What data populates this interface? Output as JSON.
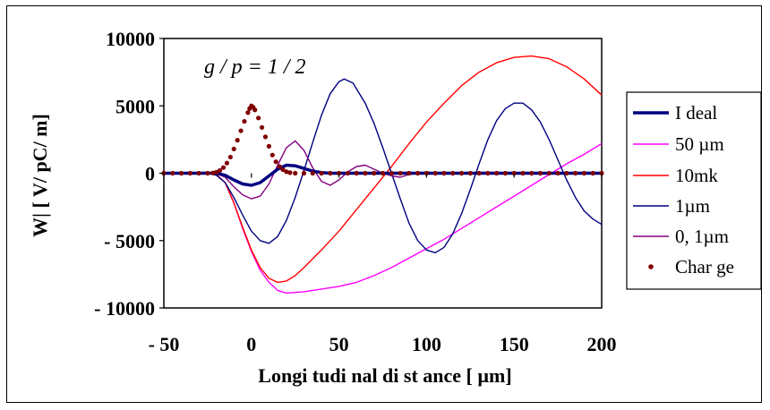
{
  "chart_data": {
    "type": "line",
    "title": "",
    "annotation": "g / p = 1 / 2",
    "xlabel": "Longi tudi nal  di st ance  [ µm]",
    "ylabel": "W|  [ V/ pC/ m]",
    "xlim": [
      -50,
      200
    ],
    "ylim": [
      -10000,
      10000
    ],
    "x_ticks": [
      -50,
      0,
      50,
      100,
      150,
      200
    ],
    "x_tick_labels": [
      "- 50",
      "0",
      "50",
      "100",
      "150",
      "200"
    ],
    "y_ticks": [
      10000,
      5000,
      0,
      -5000,
      -10000
    ],
    "y_tick_labels": [
      "10000",
      "5000",
      "0",
      "- 5000",
      "- 10000"
    ],
    "grid": false,
    "legend_position": "right",
    "series": [
      {
        "name": "I deal",
        "color": "#000080",
        "style": "thick",
        "points": [
          [
            -50,
            0
          ],
          [
            -20,
            0
          ],
          [
            -15,
            -150
          ],
          [
            -10,
            -500
          ],
          [
            -5,
            -800
          ],
          [
            0,
            -900
          ],
          [
            5,
            -700
          ],
          [
            10,
            -200
          ],
          [
            15,
            300
          ],
          [
            20,
            600
          ],
          [
            25,
            550
          ],
          [
            30,
            350
          ],
          [
            35,
            150
          ],
          [
            40,
            50
          ],
          [
            45,
            0
          ],
          [
            200,
            0
          ]
        ]
      },
      {
        "name": "50 µm",
        "color": "#ff00ff",
        "style": "line",
        "points": [
          [
            -50,
            0
          ],
          [
            -25,
            0
          ],
          [
            -20,
            -100
          ],
          [
            -15,
            -700
          ],
          [
            -10,
            -2200
          ],
          [
            -5,
            -4100
          ],
          [
            0,
            -5800
          ],
          [
            5,
            -7200
          ],
          [
            10,
            -8100
          ],
          [
            15,
            -8700
          ],
          [
            20,
            -8900
          ],
          [
            30,
            -8800
          ],
          [
            40,
            -8600
          ],
          [
            50,
            -8400
          ],
          [
            60,
            -8100
          ],
          [
            70,
            -7600
          ],
          [
            80,
            -7000
          ],
          [
            90,
            -6300
          ],
          [
            100,
            -5600
          ],
          [
            110,
            -4900
          ],
          [
            120,
            -4100
          ],
          [
            130,
            -3300
          ],
          [
            140,
            -2500
          ],
          [
            150,
            -1700
          ],
          [
            160,
            -900
          ],
          [
            170,
            -100
          ],
          [
            180,
            700
          ],
          [
            190,
            1400
          ],
          [
            200,
            2200
          ]
        ]
      },
      {
        "name": "10mk",
        "color": "#ff0000",
        "style": "line",
        "points": [
          [
            -50,
            0
          ],
          [
            -25,
            0
          ],
          [
            -20,
            -100
          ],
          [
            -15,
            -700
          ],
          [
            -10,
            -2200
          ],
          [
            -5,
            -4000
          ],
          [
            0,
            -5700
          ],
          [
            5,
            -7000
          ],
          [
            10,
            -7800
          ],
          [
            15,
            -8100
          ],
          [
            20,
            -8000
          ],
          [
            25,
            -7600
          ],
          [
            30,
            -7000
          ],
          [
            40,
            -5700
          ],
          [
            50,
            -4300
          ],
          [
            60,
            -2700
          ],
          [
            70,
            -1100
          ],
          [
            80,
            500
          ],
          [
            90,
            2200
          ],
          [
            100,
            3800
          ],
          [
            110,
            5200
          ],
          [
            120,
            6500
          ],
          [
            130,
            7500
          ],
          [
            140,
            8200
          ],
          [
            150,
            8600
          ],
          [
            160,
            8700
          ],
          [
            170,
            8500
          ],
          [
            180,
            7900
          ],
          [
            190,
            7000
          ],
          [
            200,
            5800
          ]
        ]
      },
      {
        "name": "1µm",
        "color": "#000080",
        "style": "line",
        "points": [
          [
            -50,
            0
          ],
          [
            -25,
            0
          ],
          [
            -20,
            -150
          ],
          [
            -15,
            -700
          ],
          [
            -10,
            -1800
          ],
          [
            -5,
            -3100
          ],
          [
            0,
            -4300
          ],
          [
            5,
            -5000
          ],
          [
            10,
            -5200
          ],
          [
            15,
            -4700
          ],
          [
            20,
            -3500
          ],
          [
            25,
            -1800
          ],
          [
            30,
            200
          ],
          [
            35,
            2300
          ],
          [
            40,
            4300
          ],
          [
            45,
            5900
          ],
          [
            50,
            6800
          ],
          [
            53,
            7000
          ],
          [
            58,
            6700
          ],
          [
            65,
            5200
          ],
          [
            70,
            3700
          ],
          [
            75,
            1900
          ],
          [
            80,
            0
          ],
          [
            85,
            -1900
          ],
          [
            90,
            -3700
          ],
          [
            95,
            -5000
          ],
          [
            100,
            -5700
          ],
          [
            105,
            -5900
          ],
          [
            110,
            -5500
          ],
          [
            115,
            -4500
          ],
          [
            120,
            -3000
          ],
          [
            125,
            -1200
          ],
          [
            130,
            700
          ],
          [
            135,
            2500
          ],
          [
            140,
            3900
          ],
          [
            145,
            4800
          ],
          [
            150,
            5200
          ],
          [
            155,
            5200
          ],
          [
            160,
            4700
          ],
          [
            165,
            3800
          ],
          [
            170,
            2500
          ],
          [
            175,
            1000
          ],
          [
            180,
            -500
          ],
          [
            185,
            -1800
          ],
          [
            190,
            -2800
          ],
          [
            195,
            -3400
          ],
          [
            200,
            -3800
          ]
        ]
      },
      {
        "name": "0, 1µm",
        "color": "#800080",
        "style": "line",
        "points": [
          [
            -50,
            0
          ],
          [
            -20,
            0
          ],
          [
            -15,
            -300
          ],
          [
            -10,
            -1000
          ],
          [
            -5,
            -1600
          ],
          [
            0,
            -1900
          ],
          [
            5,
            -1700
          ],
          [
            10,
            -800
          ],
          [
            15,
            600
          ],
          [
            20,
            1900
          ],
          [
            25,
            2400
          ],
          [
            30,
            1700
          ],
          [
            35,
            400
          ],
          [
            40,
            -600
          ],
          [
            45,
            -900
          ],
          [
            50,
            -500
          ],
          [
            55,
            100
          ],
          [
            60,
            500
          ],
          [
            65,
            600
          ],
          [
            70,
            300
          ],
          [
            75,
            0
          ],
          [
            80,
            -200
          ],
          [
            85,
            -300
          ],
          [
            90,
            -100
          ],
          [
            95,
            0
          ],
          [
            100,
            100
          ],
          [
            105,
            0
          ],
          [
            200,
            0
          ]
        ]
      },
      {
        "name": "Char ge",
        "color": "#800000",
        "style": "dots",
        "points": [
          [
            -50,
            0
          ],
          [
            -45,
            0
          ],
          [
            -40,
            0
          ],
          [
            -35,
            0
          ],
          [
            -30,
            0
          ],
          [
            -25,
            0
          ],
          [
            -22,
            20
          ],
          [
            -20,
            80
          ],
          [
            -18,
            200
          ],
          [
            -16,
            420
          ],
          [
            -14,
            750
          ],
          [
            -12,
            1200
          ],
          [
            -10,
            1800
          ],
          [
            -8,
            2450
          ],
          [
            -6,
            3150
          ],
          [
            -4,
            3850
          ],
          [
            -2,
            4500
          ],
          [
            -1,
            4800
          ],
          [
            0,
            5000
          ],
          [
            1,
            4900
          ],
          [
            2,
            4700
          ],
          [
            4,
            4100
          ],
          [
            6,
            3400
          ],
          [
            8,
            2700
          ],
          [
            10,
            2000
          ],
          [
            12,
            1350
          ],
          [
            14,
            850
          ],
          [
            16,
            500
          ],
          [
            18,
            260
          ],
          [
            20,
            110
          ],
          [
            22,
            40
          ],
          [
            25,
            0
          ],
          [
            30,
            0
          ],
          [
            35,
            0
          ],
          [
            40,
            0
          ],
          [
            45,
            0
          ],
          [
            50,
            0
          ],
          [
            55,
            0
          ],
          [
            60,
            0
          ],
          [
            65,
            0
          ],
          [
            70,
            0
          ],
          [
            75,
            0
          ],
          [
            80,
            0
          ],
          [
            85,
            0
          ],
          [
            90,
            0
          ],
          [
            95,
            0
          ],
          [
            100,
            0
          ],
          [
            105,
            0
          ],
          [
            110,
            0
          ],
          [
            115,
            0
          ],
          [
            120,
            0
          ],
          [
            125,
            0
          ],
          [
            130,
            0
          ],
          [
            135,
            0
          ],
          [
            140,
            0
          ],
          [
            145,
            0
          ],
          [
            150,
            0
          ],
          [
            155,
            0
          ],
          [
            160,
            0
          ],
          [
            165,
            0
          ],
          [
            170,
            0
          ],
          [
            175,
            0
          ],
          [
            180,
            0
          ],
          [
            185,
            0
          ],
          [
            190,
            0
          ],
          [
            195,
            0
          ],
          [
            200,
            0
          ]
        ]
      }
    ]
  }
}
